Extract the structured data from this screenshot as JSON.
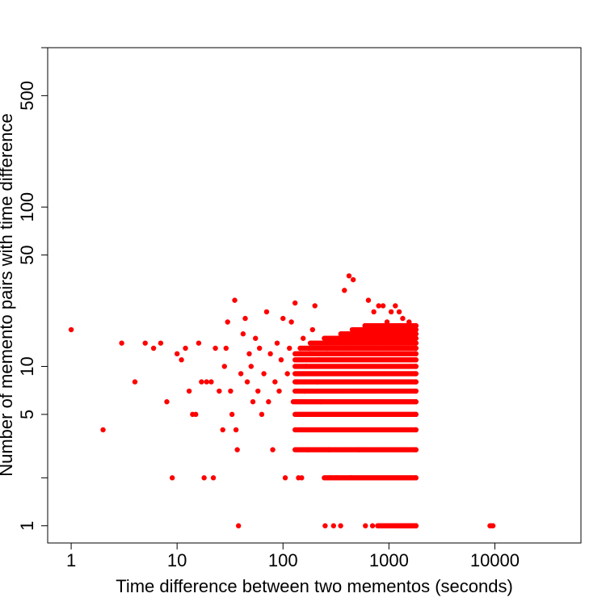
{
  "chart_data": {
    "type": "scatter",
    "title": "",
    "xlabel": "Time difference between two mementos (seconds)",
    "ylabel": "Number of memento pairs with time difference",
    "x_scale": "log",
    "y_scale": "log",
    "xlim": [
      0.6,
      65000
    ],
    "ylim": [
      0.78,
      1000
    ],
    "x_ticks": [
      {
        "value": 1,
        "label": "1"
      },
      {
        "value": 10,
        "label": "10"
      },
      {
        "value": 100,
        "label": "100"
      },
      {
        "value": 1000,
        "label": "1000"
      },
      {
        "value": 10000,
        "label": "10000"
      },
      {
        "value": 100000,
        "label": ""
      }
    ],
    "y_ticks": [
      {
        "value": 1,
        "label": "1"
      },
      {
        "value": 2,
        "label": ""
      },
      {
        "value": 5,
        "label": "5"
      },
      {
        "value": 10,
        "label": "10"
      },
      {
        "value": 50,
        "label": "50"
      },
      {
        "value": 100,
        "label": "100"
      },
      {
        "value": 500,
        "label": "500"
      },
      {
        "value": 1000,
        "label": ""
      }
    ],
    "grid": false,
    "legend": "none",
    "point_color": "#ff0000",
    "series": [
      {
        "points": [
          [
            1,
            17
          ],
          [
            2,
            4
          ],
          [
            3,
            14
          ],
          [
            4,
            8
          ],
          [
            5,
            14
          ],
          [
            6,
            13
          ],
          [
            7,
            14
          ],
          [
            8,
            6
          ],
          [
            9,
            2
          ],
          [
            10,
            12
          ],
          [
            11,
            11
          ],
          [
            12,
            13
          ],
          [
            13,
            7
          ],
          [
            14,
            5
          ],
          [
            15,
            5
          ],
          [
            16,
            14
          ],
          [
            17,
            8
          ],
          [
            18,
            2
          ],
          [
            19,
            8
          ],
          [
            21,
            8
          ],
          [
            22,
            2
          ],
          [
            23,
            13
          ],
          [
            25,
            7
          ],
          [
            27,
            4
          ],
          [
            28,
            10
          ],
          [
            29,
            13
          ],
          [
            30,
            19
          ],
          [
            32,
            7
          ],
          [
            33,
            5
          ],
          [
            35,
            26
          ],
          [
            36,
            4
          ],
          [
            37,
            3
          ],
          [
            38,
            1
          ],
          [
            40,
            9
          ],
          [
            42,
            16
          ],
          [
            44,
            20
          ],
          [
            46,
            8
          ],
          [
            48,
            12
          ],
          [
            50,
            10
          ],
          [
            52,
            6
          ],
          [
            55,
            15
          ],
          [
            58,
            7
          ],
          [
            60,
            13
          ],
          [
            63,
            5
          ],
          [
            66,
            9
          ],
          [
            70,
            22
          ],
          [
            73,
            6
          ],
          [
            76,
            12
          ],
          [
            80,
            3
          ],
          [
            84,
            8
          ],
          [
            88,
            14
          ],
          [
            92,
            7
          ],
          [
            96,
            11
          ],
          [
            100,
            20
          ],
          [
            105,
            2
          ],
          [
            110,
            9
          ],
          [
            115,
            13
          ],
          [
            120,
            19
          ],
          [
            125,
            6
          ],
          [
            130,
            25
          ],
          [
            135,
            8
          ],
          [
            140,
            2
          ],
          [
            145,
            12
          ],
          [
            150,
            2
          ],
          [
            155,
            15
          ],
          [
            160,
            7
          ],
          [
            165,
            10
          ],
          [
            170,
            3
          ],
          [
            180,
            13
          ],
          [
            190,
            17
          ],
          [
            200,
            24
          ],
          [
            210,
            8
          ],
          [
            220,
            11
          ],
          [
            230,
            6
          ],
          [
            250,
            1
          ],
          [
            260,
            13
          ],
          [
            270,
            3
          ],
          [
            280,
            2
          ],
          [
            300,
            1
          ],
          [
            320,
            2
          ],
          [
            350,
            1
          ],
          [
            380,
            30
          ],
          [
            420,
            37
          ],
          [
            460,
            35
          ],
          [
            600,
            1
          ],
          [
            700,
            1
          ],
          [
            1200,
            1
          ],
          [
            1300,
            1
          ],
          [
            1400,
            1
          ],
          [
            1500,
            1
          ],
          [
            1600,
            1
          ],
          [
            1700,
            1
          ],
          [
            1800,
            1
          ],
          [
            9000,
            1
          ],
          [
            9300,
            1
          ],
          [
            9600,
            1
          ],
          [
            440,
            2
          ],
          [
            520,
            3
          ],
          [
            640,
            26
          ],
          [
            720,
            22
          ],
          [
            800,
            24
          ],
          [
            880,
            24
          ],
          [
            960,
            19
          ],
          [
            1050,
            22
          ],
          [
            1150,
            24
          ],
          [
            1250,
            22
          ],
          [
            1350,
            20
          ],
          [
            1450,
            17
          ],
          [
            1550,
            19
          ],
          [
            1650,
            18
          ],
          [
            1750,
            18
          ]
        ]
      }
    ],
    "dense_band": {
      "x_range": [
        130,
        1800
      ],
      "y_values": [
        1,
        2,
        3,
        4,
        5,
        6,
        7,
        8,
        9,
        10,
        11,
        12,
        13,
        14,
        15,
        16,
        17,
        18
      ],
      "y_max_by_x": [
        [
          130,
          12
        ],
        [
          200,
          14
        ],
        [
          300,
          15
        ],
        [
          400,
          16
        ],
        [
          500,
          17
        ],
        [
          700,
          18
        ],
        [
          1000,
          18
        ],
        [
          1800,
          18
        ]
      ],
      "y_min_by_x": [
        [
          130,
          3
        ],
        [
          200,
          3
        ],
        [
          300,
          2
        ],
        [
          600,
          2
        ],
        [
          1000,
          1
        ],
        [
          1800,
          1
        ]
      ]
    }
  }
}
